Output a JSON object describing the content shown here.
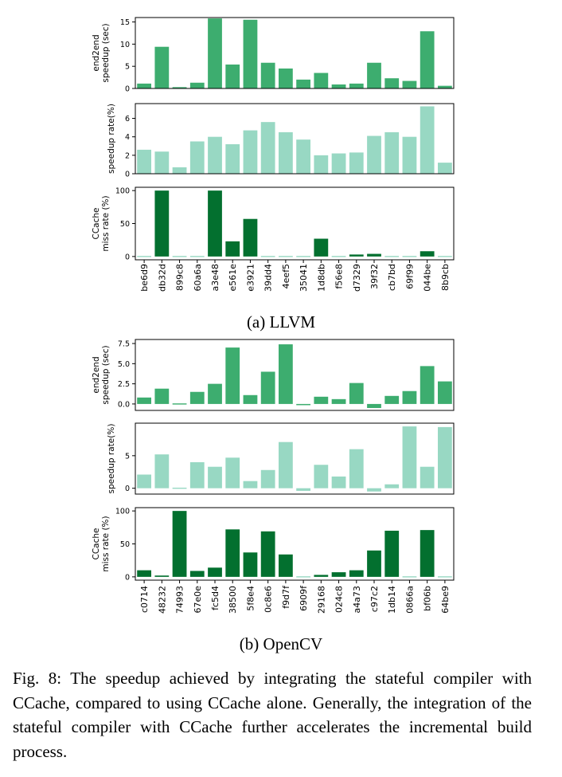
{
  "colors": {
    "dark_green": "#03702F",
    "medium_green": "#3DAD6F",
    "light_green": "#98D8C3",
    "axis": "#000000"
  },
  "captions": {
    "llvm": "(a) LLVM",
    "opencv": "(b) OpenCV",
    "figure": "Fig. 8: The speedup achieved by integrating the stateful compiler with CCache, compared to using CCache alone. Generally, the integration of the stateful compiler with CCache further accelerates the incremental build process."
  },
  "chart_data": [
    {
      "group": "LLVM",
      "type": "bar",
      "categories": [
        "be6d9",
        "db32d",
        "899c8",
        "60a6a",
        "a3e48",
        "e561e",
        "e3921",
        "39dd4",
        "4eef5",
        "35041",
        "1d8db",
        "f56e8",
        "d7329",
        "39f32",
        "cb7bd",
        "69f99",
        "044be",
        "8b9cb"
      ],
      "panels": [
        {
          "ylabel": [
            "end2end",
            "speedup (sec)"
          ],
          "ylim": [
            0,
            16
          ],
          "yticks": [
            0,
            5,
            10,
            15
          ],
          "ytick_labels": [
            "0",
            "5",
            "10",
            "15"
          ],
          "values": [
            1.1,
            9.4,
            0.3,
            1.3,
            15.8,
            5.4,
            15.5,
            5.8,
            4.5,
            2.0,
            3.5,
            0.9,
            1.1,
            5.8,
            2.3,
            1.7,
            12.9,
            0.6
          ],
          "color": "#3DAD6F"
        },
        {
          "ylabel": [
            "speedup rate(%)"
          ],
          "ylim": [
            0,
            7.6
          ],
          "yticks": [
            0,
            2,
            4,
            6
          ],
          "ytick_labels": [
            "0",
            "2",
            "4",
            "6"
          ],
          "values": [
            2.6,
            2.4,
            0.7,
            3.5,
            4.0,
            3.2,
            4.7,
            5.6,
            4.5,
            3.7,
            2.0,
            2.2,
            2.3,
            4.1,
            4.5,
            4.0,
            7.3,
            1.2
          ],
          "color": "#98D8C3"
        },
        {
          "ylabel": [
            "CCache",
            "miss rate (%)"
          ],
          "ylim": [
            -5,
            105
          ],
          "yticks": [
            0,
            50,
            100
          ],
          "ytick_labels": [
            "0",
            "50",
            "100"
          ],
          "values": [
            0,
            100,
            0,
            0,
            100,
            23,
            57,
            0,
            0,
            0,
            27,
            0,
            3,
            4,
            0,
            0,
            8,
            0
          ],
          "color": "#03702F",
          "zero_color": "#98D8C3"
        }
      ]
    },
    {
      "group": "OpenCV",
      "type": "bar",
      "categories": [
        "c0714",
        "48232",
        "74993",
        "67e0e",
        "fc5d4",
        "38500",
        "5f8e4",
        "0c8e6",
        "f9d7f",
        "6909f",
        "29168",
        "024c8",
        "a4a73",
        "c97c2",
        "1db14",
        "0866a",
        "bf06b",
        "64be9"
      ],
      "panels": [
        {
          "ylabel": [
            "end2end",
            "speedup (sec)"
          ],
          "ylim": [
            -0.8,
            8.0
          ],
          "yticks": [
            0,
            2.5,
            5,
            7.5
          ],
          "ytick_labels": [
            "0.0",
            "2.5",
            "5.0",
            "7.5"
          ],
          "values": [
            0.8,
            1.9,
            0.05,
            1.5,
            2.5,
            7.0,
            1.1,
            4.0,
            7.4,
            -0.15,
            0.9,
            0.6,
            2.6,
            -0.5,
            1.0,
            1.6,
            4.7,
            2.8
          ],
          "color": "#3DAD6F"
        },
        {
          "ylabel": [
            "speedup rate(%)"
          ],
          "ylim": [
            -0.9,
            10.0
          ],
          "yticks": [
            0,
            5
          ],
          "ytick_labels": [
            "0",
            "5"
          ],
          "values": [
            2.1,
            5.2,
            0,
            4.0,
            3.3,
            4.7,
            1.1,
            2.8,
            7.1,
            -0.4,
            3.6,
            1.8,
            6.0,
            -0.5,
            0.6,
            9.5,
            3.3,
            9.4
          ],
          "color": "#98D8C3"
        },
        {
          "ylabel": [
            "CCache",
            "miss rate (%)"
          ],
          "ylim": [
            -5,
            105
          ],
          "yticks": [
            0,
            50,
            100
          ],
          "ytick_labels": [
            "0",
            "50",
            "100"
          ],
          "values": [
            10,
            2,
            100,
            9,
            14,
            72,
            37,
            69,
            34,
            0,
            3,
            7,
            10,
            40,
            70,
            0,
            71,
            0
          ],
          "color": "#03702F",
          "zero_color": "#98D8C3"
        }
      ]
    }
  ]
}
